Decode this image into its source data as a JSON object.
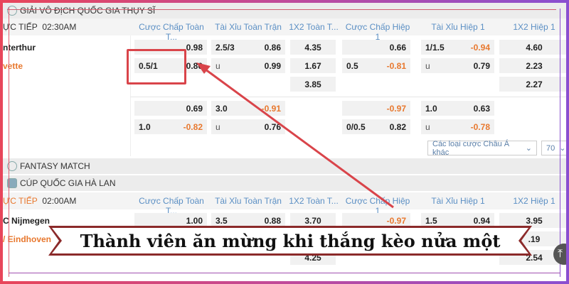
{
  "leagues": [
    {
      "name": "GIẢI VÔ ĐỊCH QUỐC GIA THỤY SĨ",
      "live": "ỰC TIẾP",
      "time": "02:30AM",
      "teams": [
        "nterthur",
        "vette",
        ""
      ]
    },
    {
      "name": "FANTASY MATCH"
    },
    {
      "name": "CÚP QUỐC GIA HÀ LAN",
      "live": "ỰC TIẾP",
      "time": "02:00AM",
      "teams": [
        "C Nijmegen",
        "/ Eindhoven",
        ""
      ]
    }
  ],
  "columns": [
    "Cược Chấp Toàn T...",
    "Tài Xỉu Toàn Trận",
    "1X2 Toàn T...",
    "Cược Chấp Hiệp 1",
    "Tài Xỉu Hiệp 1",
    "1X2 Hiệp 1"
  ],
  "m1": {
    "r1": [
      [
        "",
        "0.98"
      ],
      [
        "2.5/3",
        "0.86"
      ],
      [
        "",
        "4.35"
      ],
      [
        "",
        "0.66"
      ],
      [
        "1/1.5",
        "-0.94"
      ],
      [
        "",
        "4.60"
      ]
    ],
    "r2": [
      [
        "0.5/1",
        "0.80"
      ],
      [
        "u",
        "0.99"
      ],
      [
        "",
        "1.67"
      ],
      [
        "0.5",
        "-0.81"
      ],
      [
        "u",
        "0.79"
      ],
      [
        "",
        "2.23"
      ]
    ],
    "r3": [
      "3.85",
      "2.27"
    ],
    "r4": [
      [
        "",
        "0.69"
      ],
      [
        "3.0",
        "-0.91"
      ],
      [
        "",
        "-0.97"
      ],
      [
        "1.0",
        "0.63"
      ]
    ],
    "r5": [
      [
        "1.0",
        "-0.82"
      ],
      [
        "u",
        "0.76"
      ],
      [
        "0/0.5",
        "0.82"
      ],
      [
        "u",
        "-0.78"
      ]
    ]
  },
  "m2": {
    "r1": [
      [
        "",
        "1.00"
      ],
      [
        "3.5",
        "0.88"
      ],
      [
        "",
        "3.70"
      ],
      [
        "",
        "-0.97"
      ],
      [
        "1.5",
        "0.94"
      ],
      [
        "",
        "3.95"
      ]
    ],
    "r2_last": ".19",
    "r3": [
      "4.25",
      "2.54"
    ]
  },
  "controls": {
    "other_bets": "Các loại cược Châu Á khác",
    "page_size": "70"
  },
  "banner": "Thành viên ăn mừng khi thắng kèo nửa một",
  "colors": {
    "accent_blue": "#5b8fc4",
    "negative": "#e8782e",
    "annotation": "#d9444a"
  }
}
